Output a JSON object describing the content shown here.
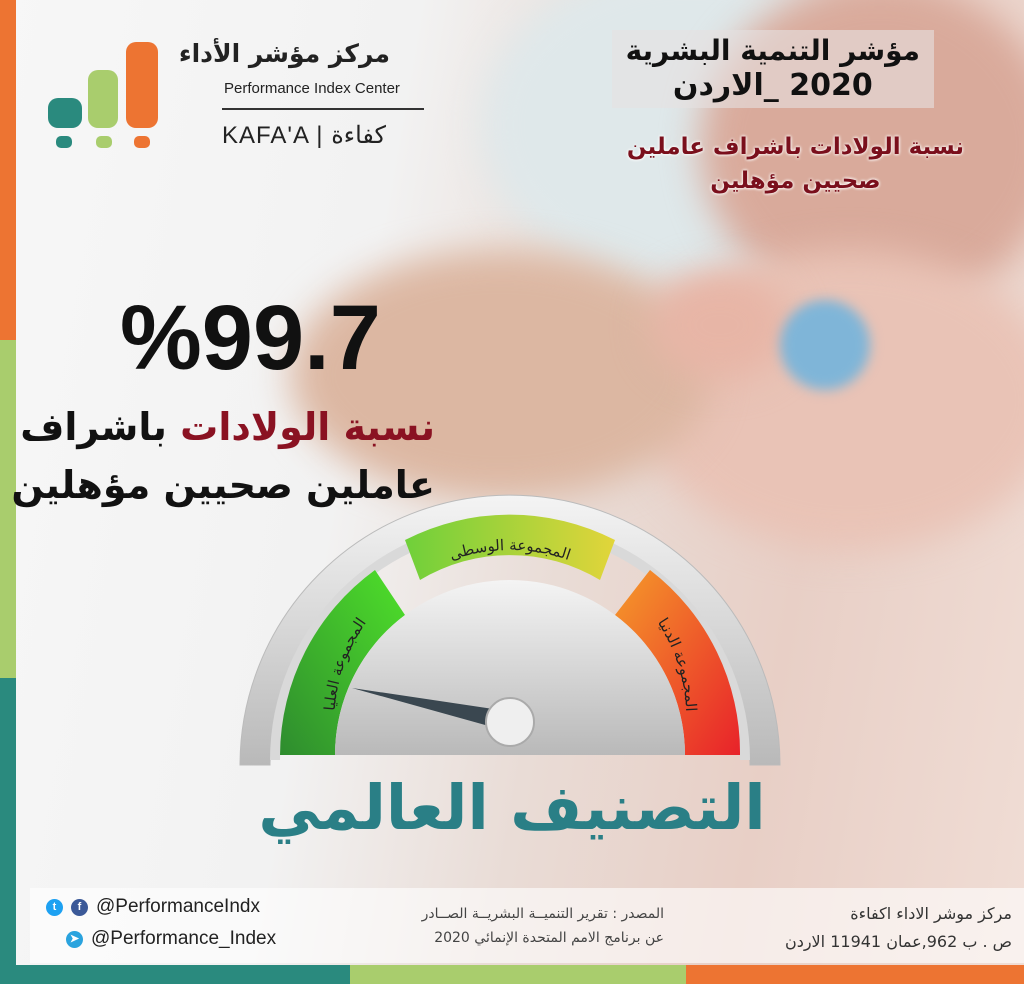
{
  "logo": {
    "arabic": "مركز مؤشر الأداء",
    "english": "Performance Index Center",
    "kafaa": "KAFA'A | كفاءة"
  },
  "header": {
    "title_line1": "مؤشر التنمية البشرية",
    "title_line2": "2020 _الاردن",
    "subtitle_line1": "نسبة الولادات باشراف عاملين",
    "subtitle_line2": "صحيين  مؤهلين"
  },
  "main": {
    "value": "%99.7",
    "desc_part1": "نسبة الولادات",
    "desc_part2": " باشراف",
    "desc_line2": "عاملين صحيين مؤهلين"
  },
  "gauge": {
    "segments": [
      {
        "label": "المجموعة العليا",
        "color": "#3ec32a"
      },
      {
        "label": "المجموعة الوسطى",
        "color": "#b9d93a"
      },
      {
        "label": "المجموعة الدنيا",
        "color": "#f06a2a"
      }
    ],
    "needle_points_to": "المجموعة العليا"
  },
  "ranking_title": "التصنيف العالمي",
  "footer": {
    "twitter_facebook": "@PerformanceIndx",
    "telegram": "@Performance_Index",
    "source_line1": "المصدر : تقرير التنميــة البشريــة الصــادر",
    "source_line2": "عن برنامج الامم المتحدة الإنمائي 2020",
    "address_line1": "مركز موشر الاداء اكفاءة",
    "address_line2": "ص . ب 962,عمان 11941 الاردن"
  },
  "colors": {
    "teal": "#2a8a7e",
    "green": "#a9cd6d",
    "orange": "#ed7432",
    "dark_red": "#7a0f1c",
    "title_teal": "#2a7f86"
  }
}
